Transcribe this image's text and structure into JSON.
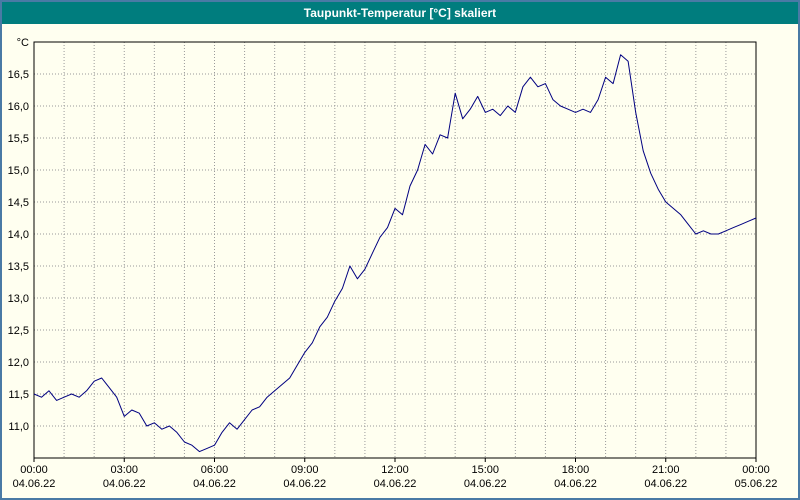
{
  "window": {
    "title": "Taupunkt-Temperatur [°C] skaliert"
  },
  "colors": {
    "header_bg": "#007d7e",
    "header_text": "#ffffff",
    "background": "#fffff0",
    "outer_border": "#4a7aa5",
    "plot_frame": "#000000",
    "grid": "#9a9a9a",
    "line": "#000080"
  },
  "chart_data": {
    "type": "line",
    "title": "Taupunkt-Temperatur [°C] skaliert",
    "ylabel": "°C",
    "unit_label": "°C",
    "ylim": [
      10.5,
      17.0
    ],
    "y_tick_step": 0.5,
    "grid": true,
    "y_ticks": [
      {
        "value": 11.0,
        "label": "11,0"
      },
      {
        "value": 11.5,
        "label": "11,5"
      },
      {
        "value": 12.0,
        "label": "12,0"
      },
      {
        "value": 12.5,
        "label": "12,5"
      },
      {
        "value": 13.0,
        "label": "13,0"
      },
      {
        "value": 13.5,
        "label": "13,5"
      },
      {
        "value": 14.0,
        "label": "14,0"
      },
      {
        "value": 14.5,
        "label": "14,5"
      },
      {
        "value": 15.0,
        "label": "15,0"
      },
      {
        "value": 15.5,
        "label": "15,5"
      },
      {
        "value": 16.0,
        "label": "16,0"
      },
      {
        "value": 16.5,
        "label": "16,5"
      }
    ],
    "xlim": [
      0,
      24
    ],
    "x_grid_step_hours": 1,
    "x_ticks": [
      {
        "hour": 0,
        "time": "00:00",
        "date": "04.06.22"
      },
      {
        "hour": 3,
        "time": "03:00",
        "date": "04.06.22"
      },
      {
        "hour": 6,
        "time": "06:00",
        "date": "04.06.22"
      },
      {
        "hour": 9,
        "time": "09:00",
        "date": "04.06.22"
      },
      {
        "hour": 12,
        "time": "12:00",
        "date": "04.06.22"
      },
      {
        "hour": 15,
        "time": "15:00",
        "date": "04.06.22"
      },
      {
        "hour": 18,
        "time": "18:00",
        "date": "04.06.22"
      },
      {
        "hour": 21,
        "time": "21:00",
        "date": "04.06.22"
      },
      {
        "hour": 24,
        "time": "00:00",
        "date": "05.06.22"
      }
    ],
    "series": [
      {
        "name": "Taupunkt-Temperatur",
        "color": "#000080",
        "points": [
          [
            0,
            11.5
          ],
          [
            0.25,
            11.45
          ],
          [
            0.5,
            11.55
          ],
          [
            0.75,
            11.4
          ],
          [
            1,
            11.45
          ],
          [
            1.25,
            11.5
          ],
          [
            1.5,
            11.45
          ],
          [
            1.75,
            11.55
          ],
          [
            2,
            11.7
          ],
          [
            2.25,
            11.75
          ],
          [
            2.5,
            11.6
          ],
          [
            2.75,
            11.45
          ],
          [
            3,
            11.15
          ],
          [
            3.25,
            11.25
          ],
          [
            3.5,
            11.2
          ],
          [
            3.75,
            11.0
          ],
          [
            4,
            11.05
          ],
          [
            4.25,
            10.95
          ],
          [
            4.5,
            11.0
          ],
          [
            4.75,
            10.9
          ],
          [
            5,
            10.75
          ],
          [
            5.25,
            10.7
          ],
          [
            5.5,
            10.6
          ],
          [
            5.75,
            10.65
          ],
          [
            6,
            10.7
          ],
          [
            6.25,
            10.9
          ],
          [
            6.5,
            11.05
          ],
          [
            6.75,
            10.95
          ],
          [
            7,
            11.1
          ],
          [
            7.25,
            11.25
          ],
          [
            7.5,
            11.3
          ],
          [
            7.75,
            11.45
          ],
          [
            8,
            11.55
          ],
          [
            8.25,
            11.65
          ],
          [
            8.5,
            11.75
          ],
          [
            8.75,
            11.95
          ],
          [
            9,
            12.15
          ],
          [
            9.25,
            12.3
          ],
          [
            9.5,
            12.55
          ],
          [
            9.75,
            12.7
          ],
          [
            10,
            12.95
          ],
          [
            10.25,
            13.15
          ],
          [
            10.5,
            13.5
          ],
          [
            10.75,
            13.3
          ],
          [
            11,
            13.45
          ],
          [
            11.25,
            13.7
          ],
          [
            11.5,
            13.95
          ],
          [
            11.75,
            14.1
          ],
          [
            12,
            14.4
          ],
          [
            12.25,
            14.3
          ],
          [
            12.5,
            14.75
          ],
          [
            12.75,
            15.0
          ],
          [
            13,
            15.4
          ],
          [
            13.25,
            15.25
          ],
          [
            13.5,
            15.55
          ],
          [
            13.75,
            15.5
          ],
          [
            14,
            16.2
          ],
          [
            14.25,
            15.8
          ],
          [
            14.5,
            15.95
          ],
          [
            14.75,
            16.15
          ],
          [
            15,
            15.9
          ],
          [
            15.25,
            15.95
          ],
          [
            15.5,
            15.85
          ],
          [
            15.75,
            16.0
          ],
          [
            16,
            15.9
          ],
          [
            16.25,
            16.3
          ],
          [
            16.5,
            16.45
          ],
          [
            16.75,
            16.3
          ],
          [
            17,
            16.35
          ],
          [
            17.25,
            16.1
          ],
          [
            17.5,
            16.0
          ],
          [
            17.75,
            15.95
          ],
          [
            18,
            15.9
          ],
          [
            18.25,
            15.95
          ],
          [
            18.5,
            15.9
          ],
          [
            18.75,
            16.1
          ],
          [
            19,
            16.45
          ],
          [
            19.25,
            16.35
          ],
          [
            19.5,
            16.8
          ],
          [
            19.75,
            16.7
          ],
          [
            20,
            15.9
          ],
          [
            20.25,
            15.3
          ],
          [
            20.5,
            14.95
          ],
          [
            20.75,
            14.7
          ],
          [
            21,
            14.5
          ],
          [
            21.25,
            14.4
          ],
          [
            21.5,
            14.3
          ],
          [
            21.75,
            14.15
          ],
          [
            22,
            14.0
          ],
          [
            22.25,
            14.05
          ],
          [
            22.5,
            14.0
          ],
          [
            22.75,
            14.0
          ],
          [
            23,
            14.05
          ],
          [
            23.25,
            14.1
          ],
          [
            23.5,
            14.15
          ],
          [
            23.75,
            14.2
          ],
          [
            24,
            14.25
          ]
        ]
      }
    ]
  }
}
